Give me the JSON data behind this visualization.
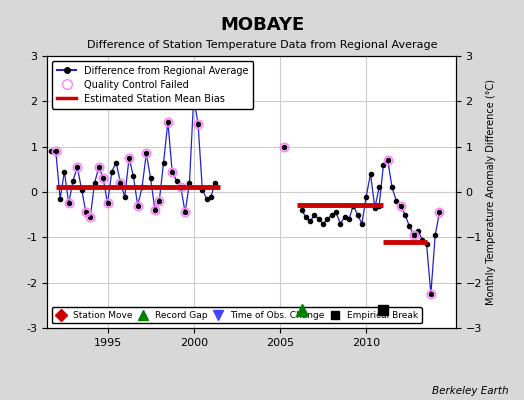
{
  "title": "MOBAYE",
  "subtitle": "Difference of Station Temperature Data from Regional Average",
  "ylabel": "Monthly Temperature Anomaly Difference (°C)",
  "ylim": [
    -3,
    3
  ],
  "xlim": [
    1991.5,
    2015.2
  ],
  "fig_bg_color": "#d8d8d8",
  "plot_bg_color": "#ffffff",
  "grid_color": "#cccccc",
  "berkeley_earth_text": "Berkeley Earth",
  "segment1_start": 1992.0,
  "segment1_end": 2001.5,
  "segment1_bias": 0.1,
  "segment2_start": 2006.0,
  "segment2_end": 2011.0,
  "segment2_bias": -0.28,
  "segment3_start": 2011.0,
  "segment3_end": 2013.5,
  "segment3_bias": -1.1,
  "record_gap_x": 2006.25,
  "record_gap_y": -2.6,
  "empirical_break_x": 2011.0,
  "empirical_break_y": -2.6,
  "xticks": [
    1995,
    2000,
    2005,
    2010
  ],
  "yticks": [
    -3,
    -2,
    -1,
    0,
    1,
    2,
    3
  ],
  "line_color": "#2222cc",
  "qc_failed_color": "#ff80ff",
  "bias_color": "#cc0000",
  "data_period1": {
    "times": [
      1992.0,
      1992.25,
      1992.5,
      1992.75,
      1993.0,
      1993.25,
      1993.5,
      1993.75,
      1994.0,
      1994.25,
      1994.5,
      1994.75,
      1995.0,
      1995.25,
      1995.5,
      1995.75,
      1996.0,
      1996.25,
      1996.5,
      1996.75,
      1997.0,
      1997.25,
      1997.5,
      1997.75,
      1998.0,
      1998.25,
      1998.5,
      1998.75,
      1999.0,
      1999.25,
      1999.5,
      1999.75,
      2000.0,
      2000.25,
      2000.5,
      2000.75,
      2001.0,
      2001.25
    ],
    "values": [
      0.9,
      -0.15,
      0.45,
      -0.25,
      0.25,
      0.55,
      0.05,
      -0.45,
      -0.55,
      0.2,
      0.55,
      0.3,
      -0.25,
      0.45,
      0.65,
      0.2,
      -0.1,
      0.75,
      0.35,
      -0.3,
      0.1,
      0.85,
      0.3,
      -0.4,
      -0.2,
      0.65,
      1.55,
      0.45,
      0.25,
      0.1,
      -0.45,
      0.2,
      2.1,
      1.5,
      0.05,
      -0.15,
      -0.1,
      0.2
    ],
    "qc_failed": [
      true,
      false,
      false,
      true,
      false,
      true,
      false,
      true,
      true,
      false,
      true,
      true,
      true,
      false,
      false,
      true,
      false,
      true,
      false,
      true,
      false,
      true,
      false,
      true,
      true,
      false,
      true,
      true,
      false,
      true,
      true,
      false,
      true,
      true,
      false,
      false,
      false,
      false
    ]
  },
  "data_period2": {
    "times": [
      2006.25,
      2006.5,
      2006.75,
      2007.0,
      2007.25,
      2007.5,
      2007.75,
      2008.0,
      2008.25,
      2008.5,
      2008.75,
      2009.0,
      2009.25,
      2009.5,
      2009.75,
      2010.0,
      2010.25,
      2010.5,
      2010.75
    ],
    "values": [
      -0.4,
      -0.55,
      -0.65,
      -0.5,
      -0.6,
      -0.7,
      -0.6,
      -0.5,
      -0.45,
      -0.7,
      -0.55,
      -0.6,
      -0.3,
      -0.5,
      -0.7,
      -0.1,
      0.4,
      -0.35,
      0.1
    ],
    "qc_failed": [
      false,
      false,
      false,
      false,
      false,
      false,
      false,
      false,
      false,
      false,
      false,
      false,
      false,
      false,
      false,
      false,
      false,
      false,
      false
    ]
  },
  "data_period3": {
    "times": [
      2010.75,
      2011.0,
      2011.25,
      2011.5,
      2011.75,
      2012.0,
      2012.25,
      2012.5,
      2012.75,
      2013.0,
      2013.25,
      2013.5,
      2013.75,
      2014.0,
      2014.25
    ],
    "values": [
      -0.3,
      0.6,
      0.7,
      0.1,
      -0.2,
      -0.3,
      -0.5,
      -0.75,
      -0.95,
      -0.85,
      -1.05,
      -1.15,
      -2.25,
      -0.95,
      -0.45
    ],
    "qc_failed": [
      false,
      false,
      true,
      false,
      false,
      true,
      false,
      false,
      true,
      false,
      false,
      false,
      true,
      false,
      true
    ]
  },
  "isolated_point_x": 2005.25,
  "isolated_point_y": 1.0,
  "isolated_qc": true,
  "early_point_x": 1991.75,
  "early_point_y": 0.9,
  "early_qc": false
}
